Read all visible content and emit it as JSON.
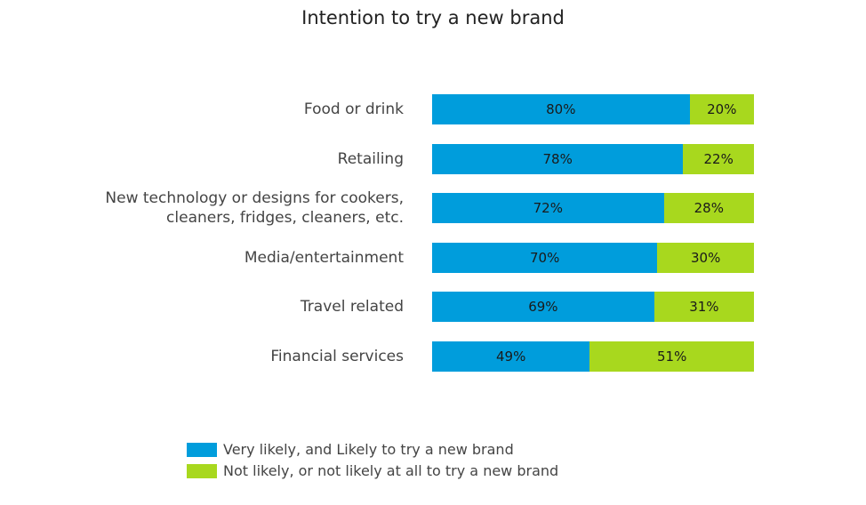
{
  "chart_data": {
    "type": "bar",
    "orientation": "horizontal",
    "stacked": true,
    "title": "Intention to try a new brand",
    "xlabel": "",
    "ylabel": "",
    "xlim": [
      0,
      100
    ],
    "categories": [
      [
        "Food or drink"
      ],
      [
        "Retailing"
      ],
      [
        "New technology or designs for cookers,",
        "cleaners, fridges, cleaners, etc."
      ],
      [
        "Media/entertainment"
      ],
      [
        "Travel related"
      ],
      [
        "Financial services"
      ]
    ],
    "series": [
      {
        "name": "Very likely, and Likely to try a new brand",
        "color": "#009ddc",
        "values": [
          80,
          78,
          72,
          70,
          69,
          49
        ],
        "labels": [
          "80%",
          "78%",
          "72%",
          "70%",
          "69%",
          "49%"
        ]
      },
      {
        "name": "Not likely, or not likely at all to try a new brand",
        "color": "#a8d81e",
        "values": [
          20,
          22,
          28,
          30,
          31,
          51
        ],
        "labels": [
          "20%",
          "22%",
          "28%",
          "30%",
          "31%",
          "51%"
        ]
      }
    ],
    "legend_position": "bottom-left",
    "grid": false
  }
}
